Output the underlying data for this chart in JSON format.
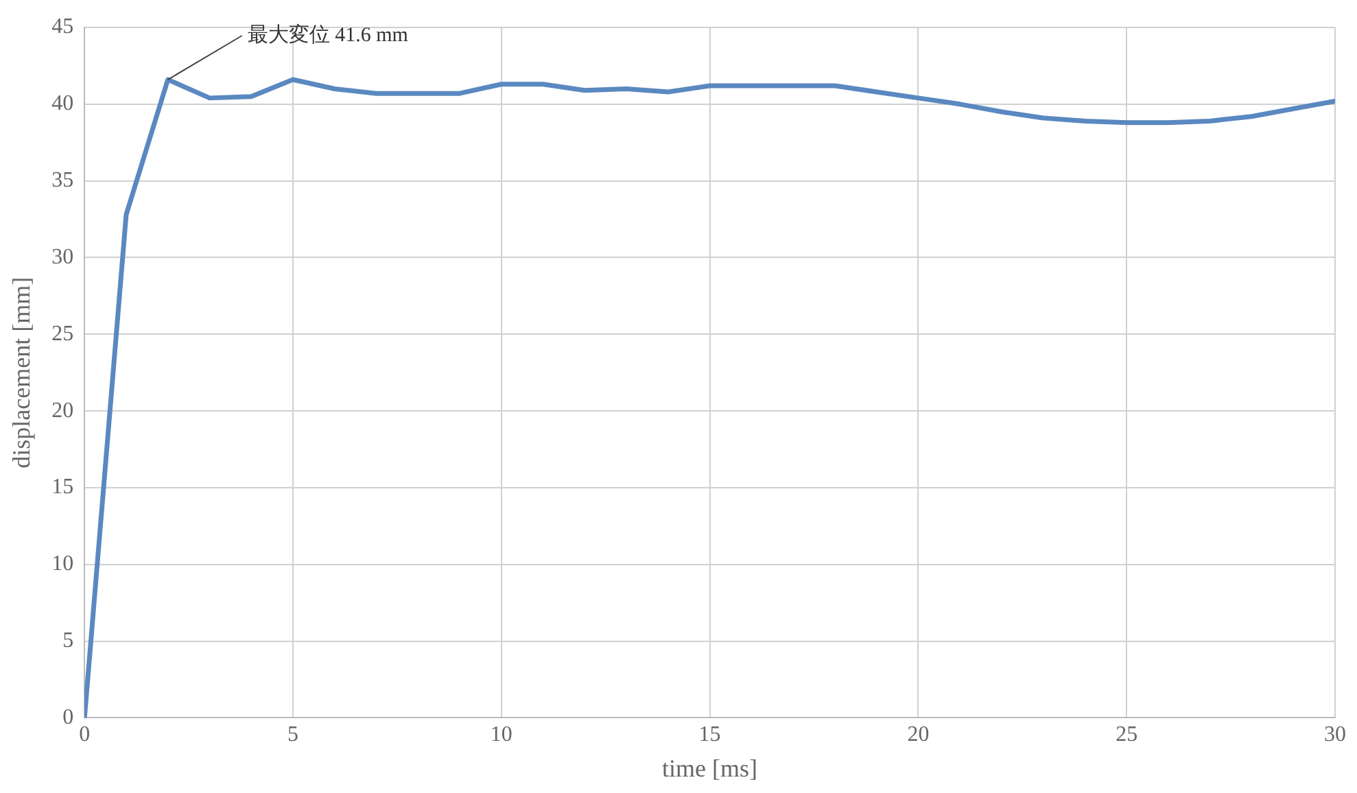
{
  "chart_data": {
    "type": "line",
    "xlabel": "time [ms]",
    "ylabel": "displacement [mm]",
    "x": [
      0,
      1,
      2,
      3,
      4,
      5,
      6,
      7,
      8,
      9,
      10,
      11,
      12,
      13,
      14,
      15,
      16,
      17,
      18,
      19,
      20,
      21,
      22,
      23,
      24,
      25,
      26,
      27,
      28,
      29,
      30
    ],
    "series": [
      {
        "color": "#5a88c0",
        "values": [
          0,
          32.8,
          41.6,
          40.4,
          40.5,
          41.6,
          41.0,
          40.7,
          40.7,
          40.7,
          41.3,
          41.3,
          40.9,
          41.0,
          40.8,
          41.2,
          41.2,
          41.2,
          41.2,
          40.8,
          40.4,
          40.0,
          39.5,
          39.1,
          38.9,
          38.8,
          38.8,
          38.9,
          39.2,
          39.7,
          40.2
        ]
      }
    ],
    "annotations": [
      {
        "text": "最大変位 41.6 mm",
        "x": 2,
        "y": 41.6
      }
    ],
    "xlim": [
      0,
      30
    ],
    "xticks": [
      0,
      5,
      10,
      15,
      20,
      25,
      30
    ],
    "ylim": [
      0,
      45
    ],
    "yticks": [
      0,
      5,
      10,
      15,
      20,
      25,
      30,
      35,
      40,
      45
    ],
    "grid": true,
    "legend": false,
    "marker": "none",
    "line_style": "solid"
  }
}
